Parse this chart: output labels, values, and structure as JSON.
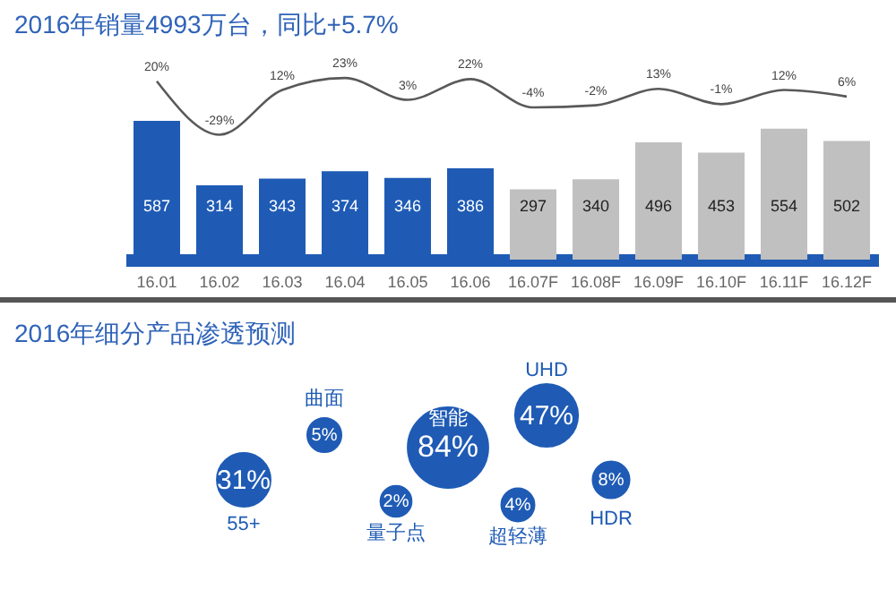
{
  "chart_data": [
    {
      "type": "bar",
      "title": "2016年销量4993万台，同比+5.7%",
      "categories": [
        "16.01",
        "16.02",
        "16.03",
        "16.04",
        "16.05",
        "16.06",
        "16.07F",
        "16.08F",
        "16.09F",
        "16.10F",
        "16.11F",
        "16.12F"
      ],
      "data_labels": true,
      "series": [
        {
          "type": "bar",
          "values": [
            587,
            314,
            343,
            374,
            346,
            386,
            297,
            340,
            496,
            453,
            554,
            502
          ],
          "colors": [
            "#1f5bb5",
            "#1f5bb5",
            "#1f5bb5",
            "#1f5bb5",
            "#1f5bb5",
            "#1f5bb5",
            "#c0c0c0",
            "#c0c0c0",
            "#c0c0c0",
            "#c0c0c0",
            "#c0c0c0",
            "#c0c0c0"
          ]
        },
        {
          "type": "line",
          "axis": "y2",
          "color": "#595959",
          "values": [
            20,
            -29,
            12,
            23,
            3,
            22,
            -4,
            -2,
            13,
            -1,
            12,
            6
          ],
          "value_labels": [
            "20%",
            "-29%",
            "12%",
            "23%",
            "3%",
            "22%",
            "-4%",
            "-2%",
            "13%",
            "-1%",
            "12%",
            "6%"
          ]
        }
      ]
    },
    {
      "type": "other",
      "title": "2016年细分产品渗透预测",
      "color": "#1f5bb5",
      "categories": [
        "55+",
        "曲面",
        "量子点",
        "智能",
        "UHD",
        "超轻薄",
        "HDR"
      ],
      "values": [
        31,
        5,
        2,
        84,
        47,
        4,
        8
      ],
      "value_labels": [
        "31%",
        "5%",
        "2%",
        "84%",
        "47%",
        "4%",
        "8%"
      ]
    }
  ]
}
